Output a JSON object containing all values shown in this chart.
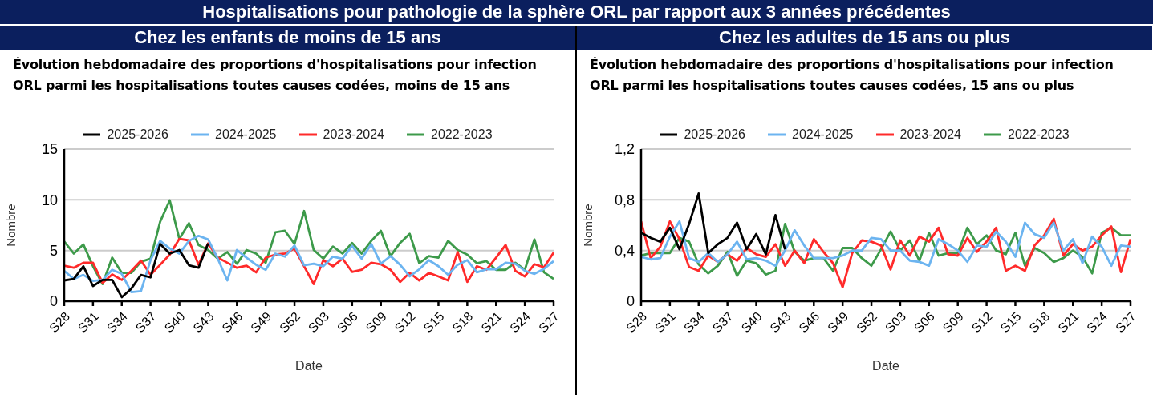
{
  "chart_data": [
    {
      "type": "line",
      "title": "Évolution hebdomadaire des proportions d'hospitalisations pour infection ORL parmi les hospitalisations toutes causes codées, moins de 15 ans",
      "subtitle": "Chez les enfants de moins de 15 ans",
      "annotations": [
        "Hospitalisations pour pathologie de la sphère ORL par rapport aux 3 années précédentes"
      ],
      "xlabel": "Date",
      "ylabel": "Nombre",
      "categories": [
        "S28",
        null,
        null,
        "S31",
        null,
        null,
        "S34",
        null,
        null,
        "S37",
        null,
        null,
        "S40",
        null,
        null,
        "S43",
        null,
        null,
        "S46",
        null,
        null,
        "S49",
        null,
        null,
        "S52",
        null,
        null,
        "S03",
        null,
        null,
        "S06",
        null,
        null,
        "S09",
        null,
        null,
        "S12",
        null,
        null,
        "S15",
        null,
        null,
        "S18",
        null,
        null,
        "S21",
        null,
        null,
        "S24",
        null,
        null,
        "S27"
      ],
      "ylim": [
        0,
        15
      ],
      "yticks": [
        0,
        5,
        10,
        15
      ],
      "grid": "y",
      "legend": "top",
      "marker": "none",
      "line_style": "solid",
      "series": [
        {
          "name": "2025-2026",
          "color": "#000000",
          "values": [
            2.05,
            2.2,
            3.45,
            1.5,
            2.1,
            2.1,
            0.4,
            1.25,
            2.6,
            2.35,
            5.65,
            4.7,
            5.05,
            3.55,
            3.3,
            5.7,
            null,
            null,
            null,
            null,
            null,
            null,
            null,
            null,
            null,
            null,
            null,
            null,
            null,
            null,
            null,
            null,
            null,
            null,
            null,
            null,
            null,
            null,
            null,
            null,
            null,
            null,
            null,
            null,
            null,
            null,
            null,
            null,
            null,
            null,
            null,
            null
          ]
        },
        {
          "name": "2024-2025",
          "color": "#6cb4f0",
          "values": [
            3.0,
            2.2,
            2.6,
            2.0,
            2.1,
            3.1,
            2.7,
            0.9,
            1.0,
            4.05,
            5.95,
            5.2,
            4.7,
            5.95,
            6.45,
            6.1,
            4.2,
            2.05,
            5.05,
            4.3,
            3.6,
            3.1,
            4.7,
            4.4,
            5.5,
            3.55,
            3.7,
            3.45,
            4.4,
            4.2,
            5.45,
            4.2,
            5.65,
            3.7,
            4.45,
            3.6,
            2.45,
            3.15,
            4.05,
            3.45,
            2.6,
            3.6,
            4.05,
            2.85,
            3.15,
            3.15,
            3.8,
            3.7,
            3.0,
            2.7,
            3.2,
            3.95
          ]
        },
        {
          "name": "2023-2024",
          "color": "#ff2a2a",
          "values": [
            3.5,
            3.3,
            3.8,
            3.8,
            1.8,
            2.65,
            2.1,
            3.0,
            4.0,
            2.6,
            3.6,
            4.6,
            6.15,
            6.0,
            3.6,
            5.7,
            4.3,
            3.8,
            3.3,
            3.5,
            2.85,
            4.3,
            4.6,
            4.7,
            5.2,
            3.45,
            1.7,
            4.05,
            3.45,
            4.2,
            2.9,
            3.1,
            3.8,
            3.65,
            3.1,
            1.9,
            2.8,
            2.05,
            2.8,
            2.45,
            2.05,
            4.85,
            1.9,
            3.45,
            3.1,
            4.3,
            5.55,
            3.0,
            2.45,
            3.65,
            3.35,
            4.8
          ]
        },
        {
          "name": "2022-2023",
          "color": "#3d9a4a",
          "values": [
            5.9,
            4.7,
            5.6,
            3.45,
            1.7,
            4.3,
            2.8,
            2.8,
            3.9,
            4.2,
            7.85,
            9.95,
            6.15,
            7.7,
            5.55,
            5.05,
            4.2,
            4.85,
            3.7,
            5.05,
            4.7,
            3.8,
            6.8,
            6.95,
            5.65,
            8.9,
            5.05,
            4.2,
            5.4,
            4.7,
            5.75,
            4.7,
            5.95,
            6.95,
            4.45,
            5.75,
            6.65,
            3.75,
            4.45,
            4.3,
            5.95,
            5.05,
            4.6,
            3.75,
            3.95,
            3.1,
            3.1,
            3.8,
            3.1,
            6.1,
            2.85,
            2.2
          ]
        }
      ]
    },
    {
      "type": "line",
      "title": "Évolution hebdomadaire des proportions d'hospitalisations pour infection ORL parmi les hospitalisations toutes causes codées, 15 ans ou plus",
      "subtitle": "Chez les adultes de 15 ans ou plus",
      "xlabel": "Date",
      "ylabel": "Nombre",
      "categories": [
        "S28",
        null,
        null,
        "S31",
        null,
        null,
        "S34",
        null,
        null,
        "S37",
        null,
        null,
        "S40",
        null,
        null,
        "S43",
        null,
        null,
        "S46",
        null,
        null,
        "S49",
        null,
        null,
        "S52",
        null,
        null,
        "S03",
        null,
        null,
        "S06",
        null,
        null,
        "S09",
        null,
        null,
        "S12",
        null,
        null,
        "S15",
        null,
        null,
        "S18",
        null,
        null,
        "S21",
        null,
        null,
        "S24",
        null,
        null,
        "S27"
      ],
      "ylim": [
        0,
        1.2
      ],
      "yticks": [
        0,
        {
          "value": 0.4,
          "label": "0,4"
        },
        {
          "value": 0.8,
          "label": "0,8"
        },
        {
          "value": 1.2,
          "label": "1,2"
        }
      ],
      "grid": "y",
      "legend": "top",
      "marker": "none",
      "line_style": "solid",
      "series": [
        {
          "name": "2025-2026",
          "color": "#000000",
          "values": [
            0.54,
            0.5,
            0.47,
            0.58,
            0.41,
            0.61,
            0.85,
            0.38,
            0.45,
            0.5,
            0.62,
            0.41,
            0.53,
            0.37,
            0.68,
            0.41,
            null,
            null,
            null,
            null,
            null,
            null,
            null,
            null,
            null,
            null,
            null,
            null,
            null,
            null,
            null,
            null,
            null,
            null,
            null,
            null,
            null,
            null,
            null,
            null,
            null,
            null,
            null,
            null,
            null,
            null,
            null,
            null,
            null,
            null,
            null,
            null
          ]
        },
        {
          "name": "2024-2025",
          "color": "#6cb4f0",
          "values": [
            0.35,
            0.33,
            0.34,
            0.51,
            0.63,
            0.34,
            0.31,
            0.38,
            0.31,
            0.37,
            0.47,
            0.33,
            0.34,
            0.32,
            0.28,
            0.4,
            0.56,
            0.44,
            0.34,
            0.34,
            0.34,
            0.36,
            0.4,
            0.4,
            0.5,
            0.49,
            0.4,
            0.4,
            0.32,
            0.31,
            0.28,
            0.49,
            0.45,
            0.4,
            0.31,
            0.44,
            0.43,
            0.55,
            0.47,
            0.35,
            0.62,
            0.53,
            0.5,
            0.62,
            0.4,
            0.49,
            0.3,
            0.51,
            0.43,
            0.28,
            0.44,
            0.43
          ]
        },
        {
          "name": "2023-2024",
          "color": "#ff2a2a",
          "values": [
            0.63,
            0.34,
            0.43,
            0.63,
            0.49,
            0.27,
            0.24,
            0.36,
            0.31,
            0.37,
            0.32,
            0.42,
            0.37,
            0.35,
            0.45,
            0.28,
            0.4,
            0.3,
            0.49,
            0.39,
            0.3,
            0.11,
            0.38,
            0.48,
            0.47,
            0.44,
            0.25,
            0.48,
            0.36,
            0.51,
            0.47,
            0.58,
            0.37,
            0.36,
            0.5,
            0.39,
            0.47,
            0.58,
            0.24,
            0.28,
            0.24,
            0.44,
            0.52,
            0.65,
            0.36,
            0.45,
            0.4,
            0.43,
            0.52,
            0.59,
            0.23,
            0.49
          ]
        },
        {
          "name": "2022-2023",
          "color": "#3d9a4a",
          "values": [
            0.36,
            0.38,
            0.38,
            0.38,
            0.5,
            0.47,
            0.29,
            0.22,
            0.28,
            0.39,
            0.2,
            0.32,
            0.3,
            0.21,
            0.24,
            0.61,
            0.39,
            0.32,
            0.34,
            0.34,
            0.24,
            0.42,
            0.42,
            0.34,
            0.28,
            0.41,
            0.55,
            0.4,
            0.48,
            0.32,
            0.54,
            0.36,
            0.38,
            0.38,
            0.58,
            0.45,
            0.52,
            0.4,
            0.37,
            0.54,
            0.28,
            0.42,
            0.38,
            0.31,
            0.34,
            0.4,
            0.35,
            0.22,
            0.54,
            0.58,
            0.52,
            0.52
          ]
        }
      ]
    }
  ]
}
